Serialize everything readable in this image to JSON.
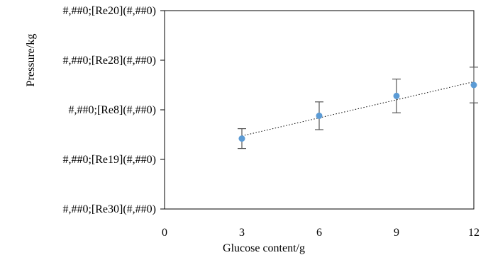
{
  "chart_data": {
    "type": "scatter",
    "title": "",
    "xlabel": "Glucose content/g",
    "ylabel": "Pressure/kg",
    "x_ticks": [
      0,
      3,
      6,
      9,
      12
    ],
    "y_tick_labels": [
      "#,##0;[Re20](#,##0)",
      "#,##0;[Re28](#,##0)",
      "#,##0;[Re8](#,##0)",
      "#,##0;[Re19](#,##0)",
      "#,##0;[Re30](#,##0)"
    ],
    "xlim": [
      0,
      12
    ],
    "ylim": [
      0,
      4
    ],
    "grid": false,
    "series": [
      {
        "x": [
          3,
          6,
          9,
          12
        ],
        "y": [
          1.42,
          1.88,
          2.28,
          2.5
        ],
        "error": [
          0.2,
          0.28,
          0.34,
          0.36
        ],
        "color": "#5b9bd5"
      }
    ],
    "trendline": {
      "style": "dotted",
      "color": "#000000"
    }
  }
}
